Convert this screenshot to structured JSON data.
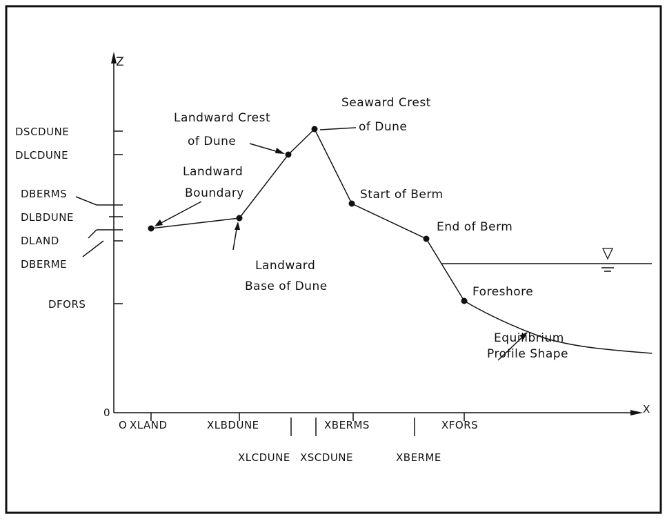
{
  "axes": {
    "z": "Z",
    "x": "X",
    "origin_z": "0",
    "origin_x": "O"
  },
  "z_levels": [
    "DSCDUNE",
    "DLCDUNE",
    "DBERMS",
    "DLBDUNE",
    "DLAND",
    "DBERME",
    "DFORS"
  ],
  "x_positions": [
    "XLAND",
    "XLBDUNE",
    "XLCDUNE",
    "XSCDUNE",
    "XBERMS",
    "XBERME",
    "XFORS"
  ],
  "annotations": [
    {
      "lines": [
        "Landward Crest",
        "of Dune"
      ]
    },
    {
      "lines": [
        "Seaward Crest",
        "of Dune"
      ]
    },
    {
      "lines": [
        "Landward",
        "Boundary"
      ]
    },
    {
      "lines": [
        "Start of Berm"
      ]
    },
    {
      "lines": [
        "End of Berm"
      ]
    },
    {
      "lines": [
        "Landward",
        "Base of Dune"
      ]
    },
    {
      "lines": [
        "Foreshore"
      ]
    },
    {
      "lines": [
        "Equilibrium",
        "Profile Shape"
      ]
    }
  ]
}
